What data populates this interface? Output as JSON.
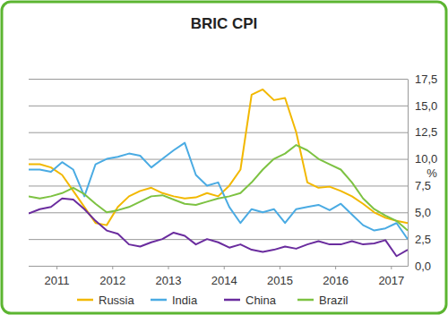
{
  "chart_data": {
    "type": "line",
    "title": "BRIC CPI",
    "y_label": "%",
    "x": [
      2010.5,
      2010.7,
      2010.9,
      2011.1,
      2011.3,
      2011.5,
      2011.7,
      2011.9,
      2012.1,
      2012.3,
      2012.5,
      2012.7,
      2012.9,
      2013.1,
      2013.3,
      2013.5,
      2013.7,
      2013.9,
      2014.1,
      2014.3,
      2014.5,
      2014.7,
      2014.9,
      2015.1,
      2015.3,
      2015.5,
      2015.7,
      2015.9,
      2016.1,
      2016.3,
      2016.5,
      2016.7,
      2016.9,
      2017.1,
      2017.3
    ],
    "series": [
      {
        "name": "Russia",
        "color": "#f2b800",
        "values": [
          9.5,
          9.5,
          9.2,
          8.5,
          7.0,
          5.5,
          4.0,
          3.8,
          5.5,
          6.5,
          7.0,
          7.3,
          6.8,
          6.5,
          6.3,
          6.4,
          6.8,
          6.5,
          7.5,
          9.0,
          16.0,
          16.5,
          15.5,
          15.7,
          12.5,
          7.8,
          7.3,
          7.4,
          7.0,
          6.5,
          5.8,
          5.0,
          4.5,
          4.2,
          4.0
        ]
      },
      {
        "name": "India",
        "color": "#4aabe3",
        "values": [
          9.0,
          9.0,
          8.8,
          9.7,
          9.0,
          6.5,
          9.5,
          10.0,
          10.2,
          10.5,
          10.3,
          9.2,
          10.0,
          10.8,
          11.5,
          8.5,
          7.5,
          7.8,
          5.5,
          4.0,
          5.3,
          5.0,
          5.3,
          4.0,
          5.3,
          5.5,
          5.7,
          5.2,
          5.8,
          4.8,
          3.8,
          3.3,
          3.5,
          4.0,
          2.5
        ]
      },
      {
        "name": "China",
        "color": "#6a2c9e",
        "values": [
          4.9,
          5.3,
          5.5,
          6.3,
          6.2,
          5.3,
          4.2,
          3.3,
          3.0,
          2.0,
          1.8,
          2.2,
          2.5,
          3.1,
          2.8,
          2.0,
          2.5,
          2.2,
          1.7,
          2.0,
          1.5,
          1.3,
          1.5,
          1.8,
          1.6,
          2.0,
          2.3,
          2.0,
          2.0,
          2.3,
          2.0,
          2.1,
          2.4,
          0.9,
          1.5
        ]
      },
      {
        "name": "Brazil",
        "color": "#7dc242",
        "values": [
          6.5,
          6.3,
          6.5,
          6.8,
          7.3,
          6.7,
          5.8,
          5.0,
          5.2,
          5.5,
          6.0,
          6.5,
          6.6,
          6.2,
          5.8,
          5.7,
          6.0,
          6.3,
          6.5,
          6.8,
          7.8,
          9.0,
          10.0,
          10.5,
          11.3,
          10.8,
          10.0,
          9.5,
          9.0,
          7.8,
          6.3,
          5.3,
          4.7,
          4.2,
          3.3
        ]
      }
    ],
    "xlim": [
      2010.5,
      2017.3
    ],
    "xticks": [
      2011,
      2012,
      2013,
      2014,
      2015,
      2016,
      2017
    ],
    "ylim": [
      0,
      17.5
    ],
    "yticks": [
      {
        "value": 0,
        "label": "0,0"
      },
      {
        "value": 2.5,
        "label": "2,5"
      },
      {
        "value": 5,
        "label": "5,0"
      },
      {
        "value": 7.5,
        "label": "7,5"
      },
      {
        "value": 10,
        "label": "10,0"
      },
      {
        "value": 12.5,
        "label": "12,5"
      },
      {
        "value": 15,
        "label": "15,0"
      },
      {
        "value": 17.5,
        "label": "17,5"
      }
    ],
    "grid": true,
    "legend": "bottom"
  }
}
